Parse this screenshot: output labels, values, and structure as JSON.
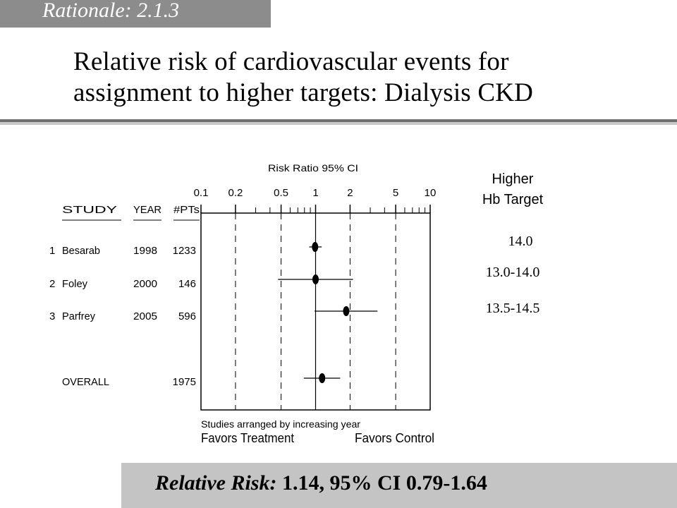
{
  "section_tag": "Rationale: 2.1.3",
  "title_line1": "Relative risk of cardiovascular events for",
  "title_line2": "assignment to higher targets:  Dialysis CKD",
  "higher_hb_header": [
    "Higher",
    "Hb Target"
  ],
  "hb_targets": [
    "14.0",
    "13.0-14.0",
    "13.5-14.5"
  ],
  "footer": {
    "label": "Relative Risk:",
    "value": " 1.14, 95% CI 0.79-1.64"
  },
  "colors": {
    "tag_bg": "#8c8c8c",
    "footer_bg": "#c4c4c4",
    "rule_dark": "#6e6e6e",
    "rule_light": "#c8c8c8"
  },
  "chart_data": {
    "type": "forest",
    "axis_title": "Risk Ratio  95%   CI",
    "x_scale": "log",
    "xlim": [
      0.1,
      10
    ],
    "tick_labels": [
      "0.1",
      "0.2",
      "0.5",
      "1",
      "2",
      "5",
      "10"
    ],
    "tick_values": [
      0.1,
      0.2,
      0.5,
      1,
      2,
      5,
      10
    ],
    "dashed_reference_lines": [
      0.2,
      0.5,
      2,
      5
    ],
    "solid_reference_line": 1,
    "columns": [
      "STUDY",
      "YEAR",
      "#PTs"
    ],
    "studies": [
      {
        "num": "1",
        "name": "Besarab",
        "year": "1998",
        "n": "1233",
        "rr": 0.99,
        "lo": 0.88,
        "hi": 1.13
      },
      {
        "num": "2",
        "name": "Foley",
        "year": "2000",
        "n": "146",
        "rr": 1.0,
        "lo": 0.47,
        "hi": 2.12
      },
      {
        "num": "3",
        "name": "Parfrey",
        "year": "2005",
        "n": "596",
        "rr": 1.85,
        "lo": 0.98,
        "hi": 3.47
      }
    ],
    "overall": {
      "name": "OVERALL",
      "n": "1975",
      "rr": 1.14,
      "lo": 0.79,
      "hi": 1.64
    },
    "note": "Studies arranged by increasing year",
    "favors_left": "Favors Treatment",
    "favors_right": "Favors Control"
  }
}
